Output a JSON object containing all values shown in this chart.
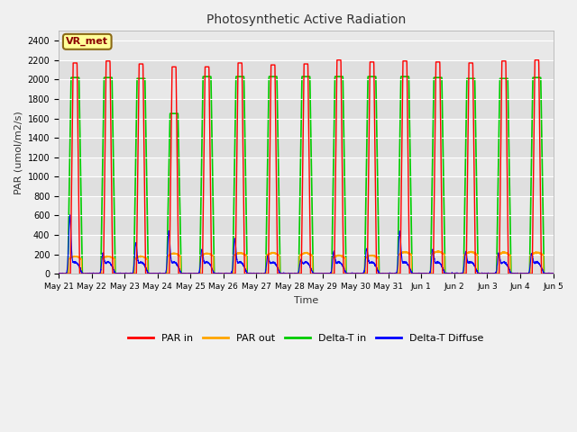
{
  "title": "Photosynthetic Active Radiation",
  "ylabel": "PAR (umol/m2/s)",
  "xlabel": "Time",
  "ylim": [
    0,
    2500
  ],
  "yticks": [
    0,
    200,
    400,
    600,
    800,
    1000,
    1200,
    1400,
    1600,
    1800,
    2000,
    2200,
    2400
  ],
  "fig_bg_color": "#f0f0f0",
  "plot_bg_color": "#e8e8e8",
  "legend_labels": [
    "PAR in",
    "PAR out",
    "Delta-T in",
    "Delta-T Diffuse"
  ],
  "legend_colors": [
    "#ff0000",
    "#ffa500",
    "#00cc00",
    "#0000ff"
  ],
  "annotation_text": "VR_met",
  "annotation_color": "#8b0000",
  "annotation_bg": "#ffff99",
  "n_days": 15,
  "par_in_peaks": [
    2170,
    2190,
    2160,
    2130,
    2130,
    2170,
    2150,
    2160,
    2200,
    2180,
    2190,
    2180,
    2170,
    2190,
    2200
  ],
  "par_out_peaks": [
    2020,
    2020,
    2010,
    1650,
    2030,
    2030,
    2030,
    2030,
    2030,
    2030,
    2030,
    2020,
    2010,
    2010,
    2020
  ],
  "day_labels": [
    "May 21",
    "May 22",
    "May 23",
    "May 24",
    "May 25",
    "May 26",
    "May 27",
    "May 28",
    "May 29",
    "May 30",
    "May 31",
    "Jun 1",
    "Jun 2",
    "Jun 3",
    "Jun 4",
    "Jun 5"
  ],
  "diffuse_spike_days": {
    "0": 550,
    "1": 160,
    "2": 270,
    "3": 390,
    "4": 200,
    "5": 310,
    "7": 90,
    "8": 175,
    "9": 210,
    "10": 390,
    "11": 200,
    "12": 175,
    "13": 155,
    "14": 155
  },
  "par_out_day_vals": {
    "0": 150,
    "1": 150,
    "2": 150,
    "3": 180,
    "4": 180,
    "5": 185,
    "6": 185,
    "7": 185,
    "8": 160,
    "9": 160,
    "10": 195,
    "11": 200,
    "12": 195,
    "13": 190,
    "14": 190
  }
}
